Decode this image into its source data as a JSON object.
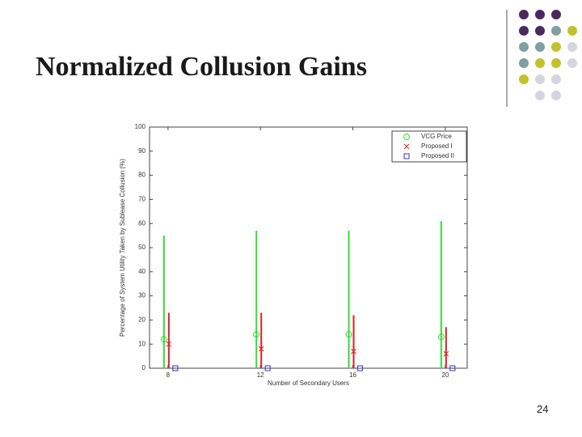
{
  "slide_title": "Normalized Collusion Gains",
  "page_number": "24",
  "chart_data": {
    "type": "range-marker",
    "x": [
      8,
      12,
      16,
      20
    ],
    "xlim": [
      7.2,
      20.95
    ],
    "xticks": [
      8,
      12,
      16,
      20
    ],
    "ylim": [
      0,
      100
    ],
    "yticks": [
      0,
      10,
      20,
      30,
      40,
      50,
      60,
      70,
      80,
      90,
      100
    ],
    "xlabel": "Number of Secondary Users",
    "ylabel": "Percentage of System Utility Taken by Sublease Collusion (%)",
    "legend": "top-right",
    "series": [
      {
        "name": "VCG Price",
        "color": "#33dd33",
        "marker": "circle",
        "values": [
          12,
          14,
          14,
          13
        ],
        "upper": [
          55,
          57,
          57,
          61
        ]
      },
      {
        "name": "Proposed I",
        "color": "#dd2222",
        "marker": "x",
        "values": [
          10,
          8,
          7,
          6
        ],
        "upper": [
          23,
          23,
          22,
          17
        ]
      },
      {
        "name": "Proposed II",
        "color": "#3333cc",
        "marker": "square",
        "values": [
          0,
          0,
          0,
          0
        ],
        "upper": [
          0,
          0,
          0,
          0
        ]
      }
    ]
  }
}
